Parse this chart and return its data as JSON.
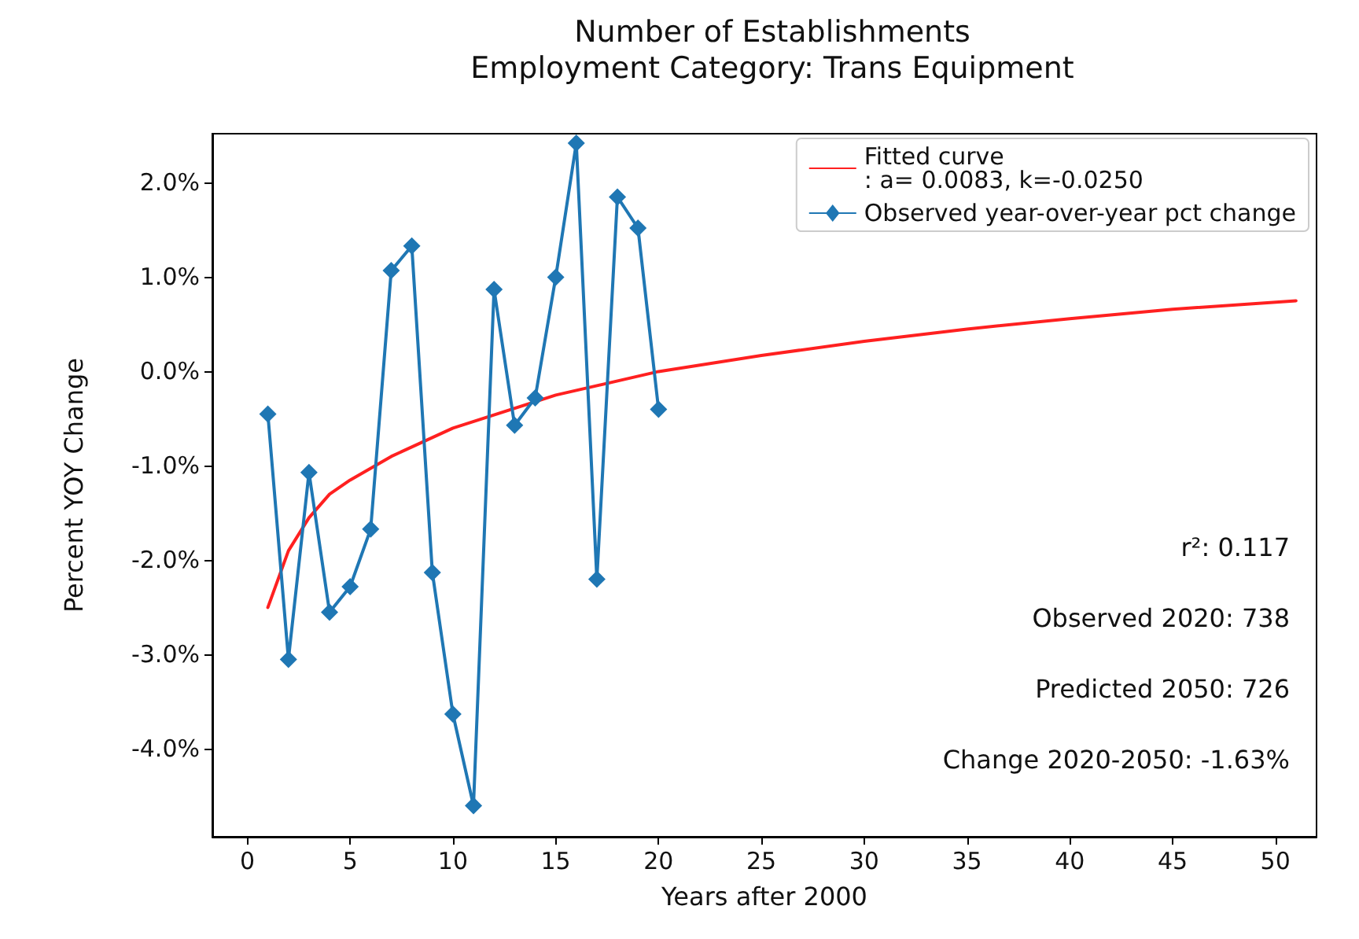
{
  "chart_data": {
    "type": "line",
    "title": "Number of Establishments",
    "subtitle": "Employment Category: Trans Equipment",
    "xlabel": "Years after 2000",
    "ylabel": "Percent YOY Change",
    "series": [
      {
        "name": "Fitted curve\n: a= 0.0083, k=-0.0250",
        "color": "#ff2020",
        "marker": "none",
        "x": [
          1,
          2,
          3,
          4,
          5,
          7,
          10,
          15,
          20,
          25,
          30,
          35,
          40,
          45,
          51
        ],
        "values": [
          -2.5,
          -1.9,
          -1.55,
          -1.3,
          -1.15,
          -0.9,
          -0.6,
          -0.25,
          0.0,
          0.17,
          0.32,
          0.45,
          0.56,
          0.66,
          0.75
        ]
      },
      {
        "name": "Observed year-over-year pct change",
        "color": "#1f77b4",
        "marker": "diamond",
        "x": [
          1,
          2,
          3,
          4,
          5,
          6,
          7,
          8,
          9,
          10,
          11,
          12,
          13,
          14,
          15,
          16,
          17,
          18,
          19,
          20
        ],
        "values": [
          -0.45,
          -3.05,
          -1.07,
          -2.55,
          -2.28,
          -1.67,
          1.07,
          1.33,
          -2.13,
          -3.63,
          -4.6,
          0.87,
          -0.57,
          -0.28,
          1.0,
          2.42,
          -2.2,
          1.85,
          1.52,
          -0.4
        ]
      }
    ],
    "xlim": [
      -1.7,
      52
    ],
    "xticks": [
      0,
      5,
      10,
      15,
      20,
      25,
      30,
      35,
      40,
      45,
      50
    ],
    "ylim": [
      -4.93,
      2.52
    ],
    "yticks": [
      {
        "value": -4,
        "label": "-4.0%"
      },
      {
        "value": -3,
        "label": "-3.0%"
      },
      {
        "value": -2,
        "label": "-2.0%"
      },
      {
        "value": -1,
        "label": "-1.0%"
      },
      {
        "value": 0,
        "label": "0.0%"
      },
      {
        "value": 1,
        "label": "1.0%"
      },
      {
        "value": 2,
        "label": "2.0%"
      }
    ],
    "annotations": [
      "r²: 0.117",
      "Observed 2020: 738",
      "Predicted 2050: 726",
      "Change 2020-2050: -1.63%"
    ],
    "legend": "top right",
    "grid": false,
    "line_style": "solid"
  }
}
